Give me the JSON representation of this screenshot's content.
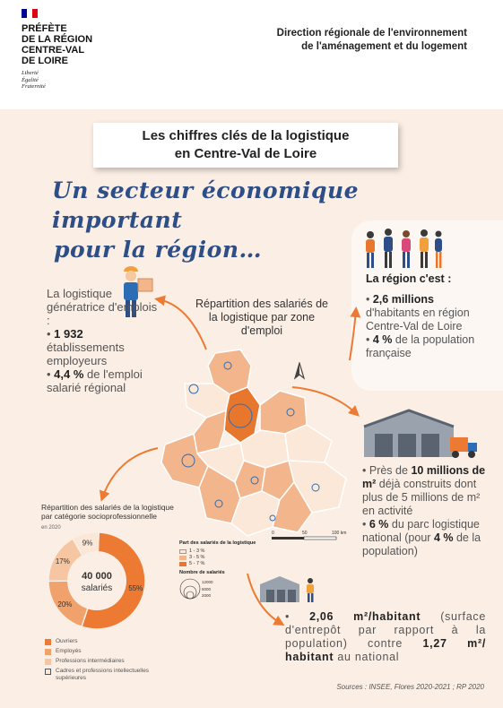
{
  "header": {
    "prefecture": [
      "PRÉFÈTE",
      "DE LA RÉGION",
      "CENTRE-VAL",
      "DE LOIRE"
    ],
    "motto": [
      "Liberté",
      "Égalité",
      "Fraternité"
    ],
    "directorate": [
      "Direction régionale de l'environnement",
      "de l'aménagement et du logement"
    ]
  },
  "title": [
    "Les chiffres clés de la logistique",
    "en Centre-Val de Loire"
  ],
  "subtitle": [
    "Un secteur économique important",
    "pour la région…"
  ],
  "employment": {
    "intro": "La logistique génératrice d'emplois :",
    "employers_value": "1 932",
    "employers_label": "établissements employeurs",
    "share_value": "4,4 %",
    "share_label": "de l'emploi salarié régional"
  },
  "region": {
    "heading": "La région c'est :",
    "population_value": "2,6 millions",
    "population_label": "d'habitants en région Centre-Val de Loire",
    "share_value": "4 %",
    "share_label": "de la population française"
  },
  "map": {
    "title": "Répartition des salariés de la logistique par zone d'emploi",
    "legend_title": "Part des salariés de la logistique",
    "classes": [
      "1 - 3 %",
      "3 - 5 %",
      "5 - 7 %"
    ],
    "size_title": "Nombre de salariés",
    "size_values": [
      "12000",
      "6000",
      "2000"
    ],
    "scale": [
      "0",
      "50",
      "100 km"
    ],
    "class_colors": [
      "#fbe8d9",
      "#f2b58c",
      "#e8772e"
    ]
  },
  "warehouse": {
    "prefix": "Près de",
    "surface_value": "10 millions de m²",
    "surface_label": "déjà construits dont plus de 5 millions de m² en activité",
    "park_value": "6 %",
    "park_label": "du parc logistique national (pour",
    "park_pop_value": "4 %",
    "park_pop_label": "de la population)"
  },
  "per_capita": {
    "value": "2,06 m²/habitant",
    "label": "(surface d'entrepôt par rapport à la population) contre",
    "national_value": "1,27 m²/ habitant",
    "national_label": "au national"
  },
  "chart_data": {
    "type": "pie",
    "title": "Répartition des salariés de la logistique par catégorie socioprofessionnelle",
    "subtitle": "en 2020",
    "center_value": "40 000",
    "center_label": "salariés",
    "categories": [
      "Ouvriers",
      "Employés",
      "Professions intermédiaires",
      "Cadres et professions intellectuelles supérieures"
    ],
    "values": [
      55,
      20,
      17,
      9
    ],
    "colors": [
      "#ec7a33",
      "#f1a26c",
      "#f6c6a2",
      "#fbe7d8"
    ]
  },
  "sources": "Sources : INSEE, Flores 2020-2021 ; RP 2020",
  "colors": {
    "accent": "#ec7a33",
    "title_blue": "#2d4e86",
    "background": "#fbeee4"
  }
}
